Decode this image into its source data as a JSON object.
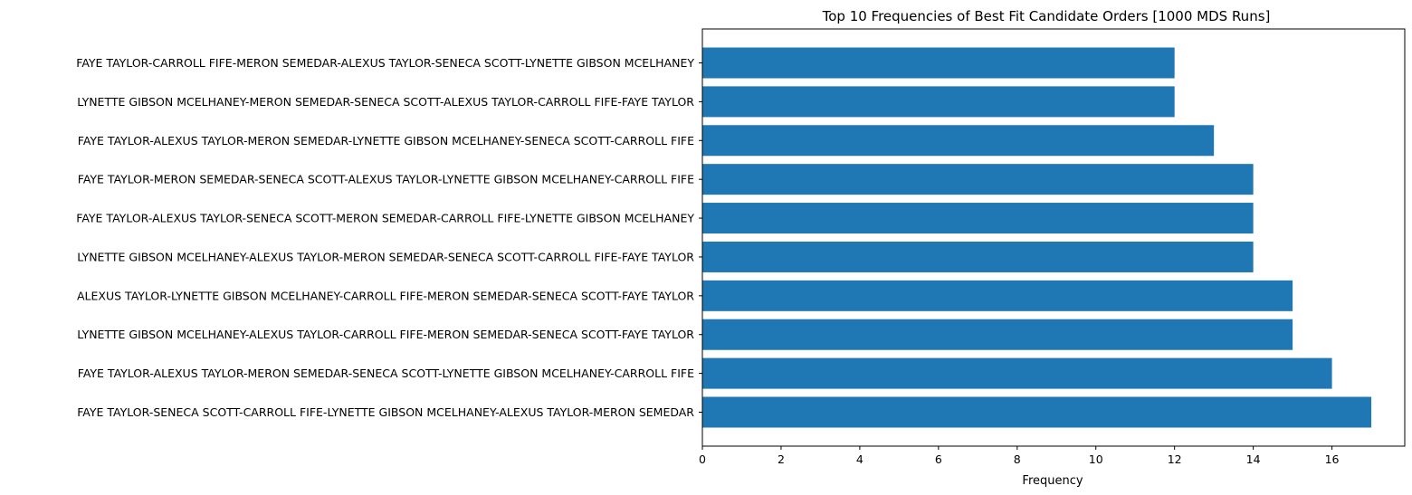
{
  "chart_data": {
    "type": "bar",
    "orientation": "horizontal",
    "title": "Top 10 Frequencies of Best Fit Candidate Orders [1000 MDS Runs]",
    "xlabel": "Frequency",
    "ylabel": "",
    "xlim": [
      0,
      17.85
    ],
    "xticks": [
      0,
      2,
      4,
      6,
      8,
      10,
      12,
      14,
      16
    ],
    "grid": false,
    "bar_color": "#1f77b4",
    "categories": [
      "FAYE TAYLOR-SENECA SCOTT-CARROLL FIFE-LYNETTE GIBSON MCELHANEY-ALEXUS TAYLOR-MERON SEMEDAR",
      "FAYE TAYLOR-ALEXUS TAYLOR-MERON SEMEDAR-SENECA SCOTT-LYNETTE GIBSON MCELHANEY-CARROLL FIFE",
      "LYNETTE GIBSON MCELHANEY-ALEXUS TAYLOR-CARROLL FIFE-MERON SEMEDAR-SENECA SCOTT-FAYE TAYLOR",
      "ALEXUS TAYLOR-LYNETTE GIBSON MCELHANEY-CARROLL FIFE-MERON SEMEDAR-SENECA SCOTT-FAYE TAYLOR",
      "LYNETTE GIBSON MCELHANEY-ALEXUS TAYLOR-MERON SEMEDAR-SENECA SCOTT-CARROLL FIFE-FAYE TAYLOR",
      "FAYE TAYLOR-ALEXUS TAYLOR-SENECA SCOTT-MERON SEMEDAR-CARROLL FIFE-LYNETTE GIBSON MCELHANEY",
      "FAYE TAYLOR-MERON SEMEDAR-SENECA SCOTT-ALEXUS TAYLOR-LYNETTE GIBSON MCELHANEY-CARROLL FIFE",
      "FAYE TAYLOR-ALEXUS TAYLOR-MERON SEMEDAR-LYNETTE GIBSON MCELHANEY-SENECA SCOTT-CARROLL FIFE",
      "LYNETTE GIBSON MCELHANEY-MERON SEMEDAR-SENECA SCOTT-ALEXUS TAYLOR-CARROLL FIFE-FAYE TAYLOR",
      "FAYE TAYLOR-CARROLL FIFE-MERON SEMEDAR-ALEXUS TAYLOR-SENECA SCOTT-LYNETTE GIBSON MCELHANEY"
    ],
    "values": [
      17,
      16,
      15,
      15,
      14,
      14,
      14,
      13,
      12,
      12
    ]
  }
}
